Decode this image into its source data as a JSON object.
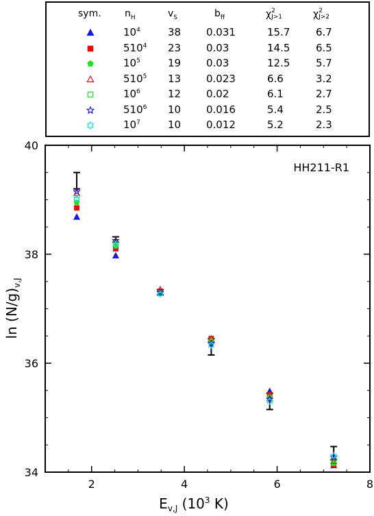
{
  "legend": {
    "headers": {
      "sym": "sym.",
      "nH": {
        "base": "n",
        "sub": "H"
      },
      "vs": {
        "base": "v",
        "sub": "S"
      },
      "bff": {
        "base": "b",
        "sub": "ff"
      },
      "chi1": {
        "base": "χ",
        "sup": "2",
        "sub": "J>1"
      },
      "chi2": {
        "base": "χ",
        "sup": "2",
        "sub": "J>2"
      }
    },
    "rows": [
      {
        "marker": "triangle-filled",
        "color": "#1a1adc",
        "nH_base": "10",
        "nH_exp": "4",
        "vs": "38",
        "bff": "0.031",
        "chi1": "15.7",
        "chi2": "6.7"
      },
      {
        "marker": "square-filled",
        "color": "#e01010",
        "nH_base": "510",
        "nH_exp": "4",
        "vs": "23",
        "bff": "0.03",
        "chi1": "14.5",
        "chi2": "6.5"
      },
      {
        "marker": "pentagon-filled",
        "color": "#22e022",
        "nH_base": "10",
        "nH_exp": "5",
        "vs": "19",
        "bff": "0.03",
        "chi1": "12.5",
        "chi2": "5.7"
      },
      {
        "marker": "triangle-open",
        "color": "#e01010",
        "nH_base": "510",
        "nH_exp": "5",
        "vs": "13",
        "bff": "0.023",
        "chi1": "6.6",
        "chi2": "3.2"
      },
      {
        "marker": "square-open",
        "color": "#22e022",
        "nH_base": "10",
        "nH_exp": "6",
        "vs": "12",
        "bff": "0.02",
        "chi1": "6.1",
        "chi2": "2.7"
      },
      {
        "marker": "star-open",
        "color": "#1a1adc",
        "nH_base": "510",
        "nH_exp": "6",
        "vs": "10",
        "bff": "0.016",
        "chi1": "5.4",
        "chi2": "2.5"
      },
      {
        "marker": "star6-open",
        "color": "#22dcdc",
        "nH_base": "10",
        "nH_exp": "7",
        "vs": "10",
        "bff": "0.012",
        "chi1": "5.2",
        "chi2": "2.3"
      }
    ]
  },
  "chart_data": {
    "type": "scatter",
    "annotation": "HH211-R1",
    "xlabel": "E",
    "xlabel_sub": "v,J",
    "xlabel_rest": " (10",
    "xlabel_sup": "3",
    "xlabel_end": " K)",
    "ylabel": "ln (N/g)",
    "ylabel_sub": "v,J",
    "xlim": [
      1,
      8
    ],
    "ylim": [
      34,
      40
    ],
    "xticks": [
      2,
      4,
      6,
      8
    ],
    "yticks": [
      34,
      36,
      38,
      40
    ],
    "grid": false,
    "observed": [
      {
        "x": 1.68,
        "y": 39.35,
        "err": 0.15
      },
      {
        "x": 2.52,
        "y": 38.27,
        "err": 0.05
      },
      {
        "x": 3.48,
        "y": 37.3,
        "err": 0.05
      },
      {
        "x": 4.58,
        "y": 36.3,
        "err": 0.15
      },
      {
        "x": 5.84,
        "y": 35.3,
        "err": 0.15
      },
      {
        "x": 7.22,
        "y": 34.35,
        "err": 0.12
      }
    ],
    "x": [
      1.68,
      2.52,
      3.48,
      4.58,
      5.84,
      7.22
    ],
    "series": [
      {
        "marker": "triangle-filled",
        "color": "#1a1adc",
        "values": [
          38.68,
          37.97,
          37.3,
          36.43,
          35.48,
          34.12
        ]
      },
      {
        "marker": "square-filled",
        "color": "#e01010",
        "values": [
          38.85,
          38.1,
          37.32,
          36.45,
          35.42,
          34.14
        ]
      },
      {
        "marker": "pentagon-filled",
        "color": "#22e022",
        "values": [
          38.95,
          38.15,
          37.3,
          36.42,
          35.38,
          34.16
        ]
      },
      {
        "marker": "triangle-open",
        "color": "#e01010",
        "values": [
          39.12,
          38.25,
          37.35,
          36.45,
          35.35,
          34.2
        ]
      },
      {
        "marker": "square-open",
        "color": "#22e022",
        "values": [
          39.0,
          38.2,
          37.28,
          36.38,
          35.35,
          34.22
        ]
      },
      {
        "marker": "star-open",
        "color": "#1a1adc",
        "values": [
          39.15,
          38.25,
          37.3,
          36.36,
          35.34,
          34.28
        ]
      },
      {
        "marker": "star6-open",
        "color": "#22dcdc",
        "values": [
          39.02,
          38.18,
          37.27,
          36.33,
          35.3,
          34.3
        ]
      }
    ]
  }
}
